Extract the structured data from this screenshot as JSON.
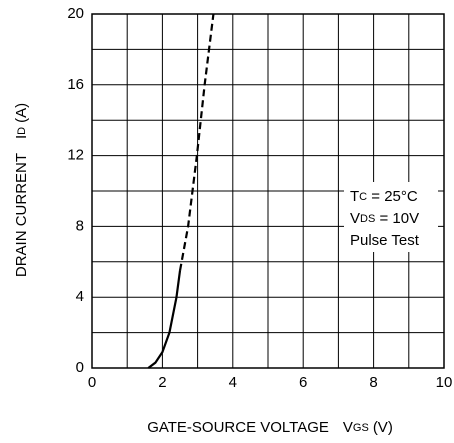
{
  "chart_data": {
    "type": "line",
    "xlabel": {
      "text": "GATE-SOURCE VOLTAGE",
      "symbol": "V",
      "sub": "GS",
      "unit": "(V)"
    },
    "ylabel": {
      "text": "DRAIN CURRENT",
      "symbol": "I",
      "sub": "D",
      "unit": "(A)"
    },
    "xlim": [
      0,
      10
    ],
    "ylim": [
      0,
      20
    ],
    "xticks": [
      0,
      2,
      4,
      6,
      8,
      10
    ],
    "yticks": [
      0,
      4,
      8,
      12,
      16,
      20
    ],
    "xgrid": [
      0,
      1,
      2,
      3,
      4,
      5,
      6,
      7,
      8,
      9,
      10
    ],
    "ygrid": [
      0,
      2,
      4,
      6,
      8,
      10,
      12,
      14,
      16,
      18,
      20
    ],
    "grid": true,
    "series": [
      {
        "color": "#000000",
        "line_style": "solid",
        "x": [
          1.6,
          1.8,
          2.0,
          2.2,
          2.4,
          2.5
        ],
        "values": [
          0,
          0.3,
          0.9,
          2.0,
          4,
          5.5
        ]
      },
      {
        "color": "#000000",
        "line_style": "dashed",
        "x": [
          2.5,
          2.73,
          2.98,
          3.2,
          3.45
        ],
        "values": [
          5.5,
          8,
          12,
          16,
          20
        ]
      }
    ],
    "annotations": [
      {
        "main": "T",
        "sub": "C",
        "rest": " = 25°C"
      },
      {
        "main": "V",
        "sub": "DS",
        "rest": " = 10V"
      },
      {
        "main": "Pulse Test"
      }
    ]
  }
}
